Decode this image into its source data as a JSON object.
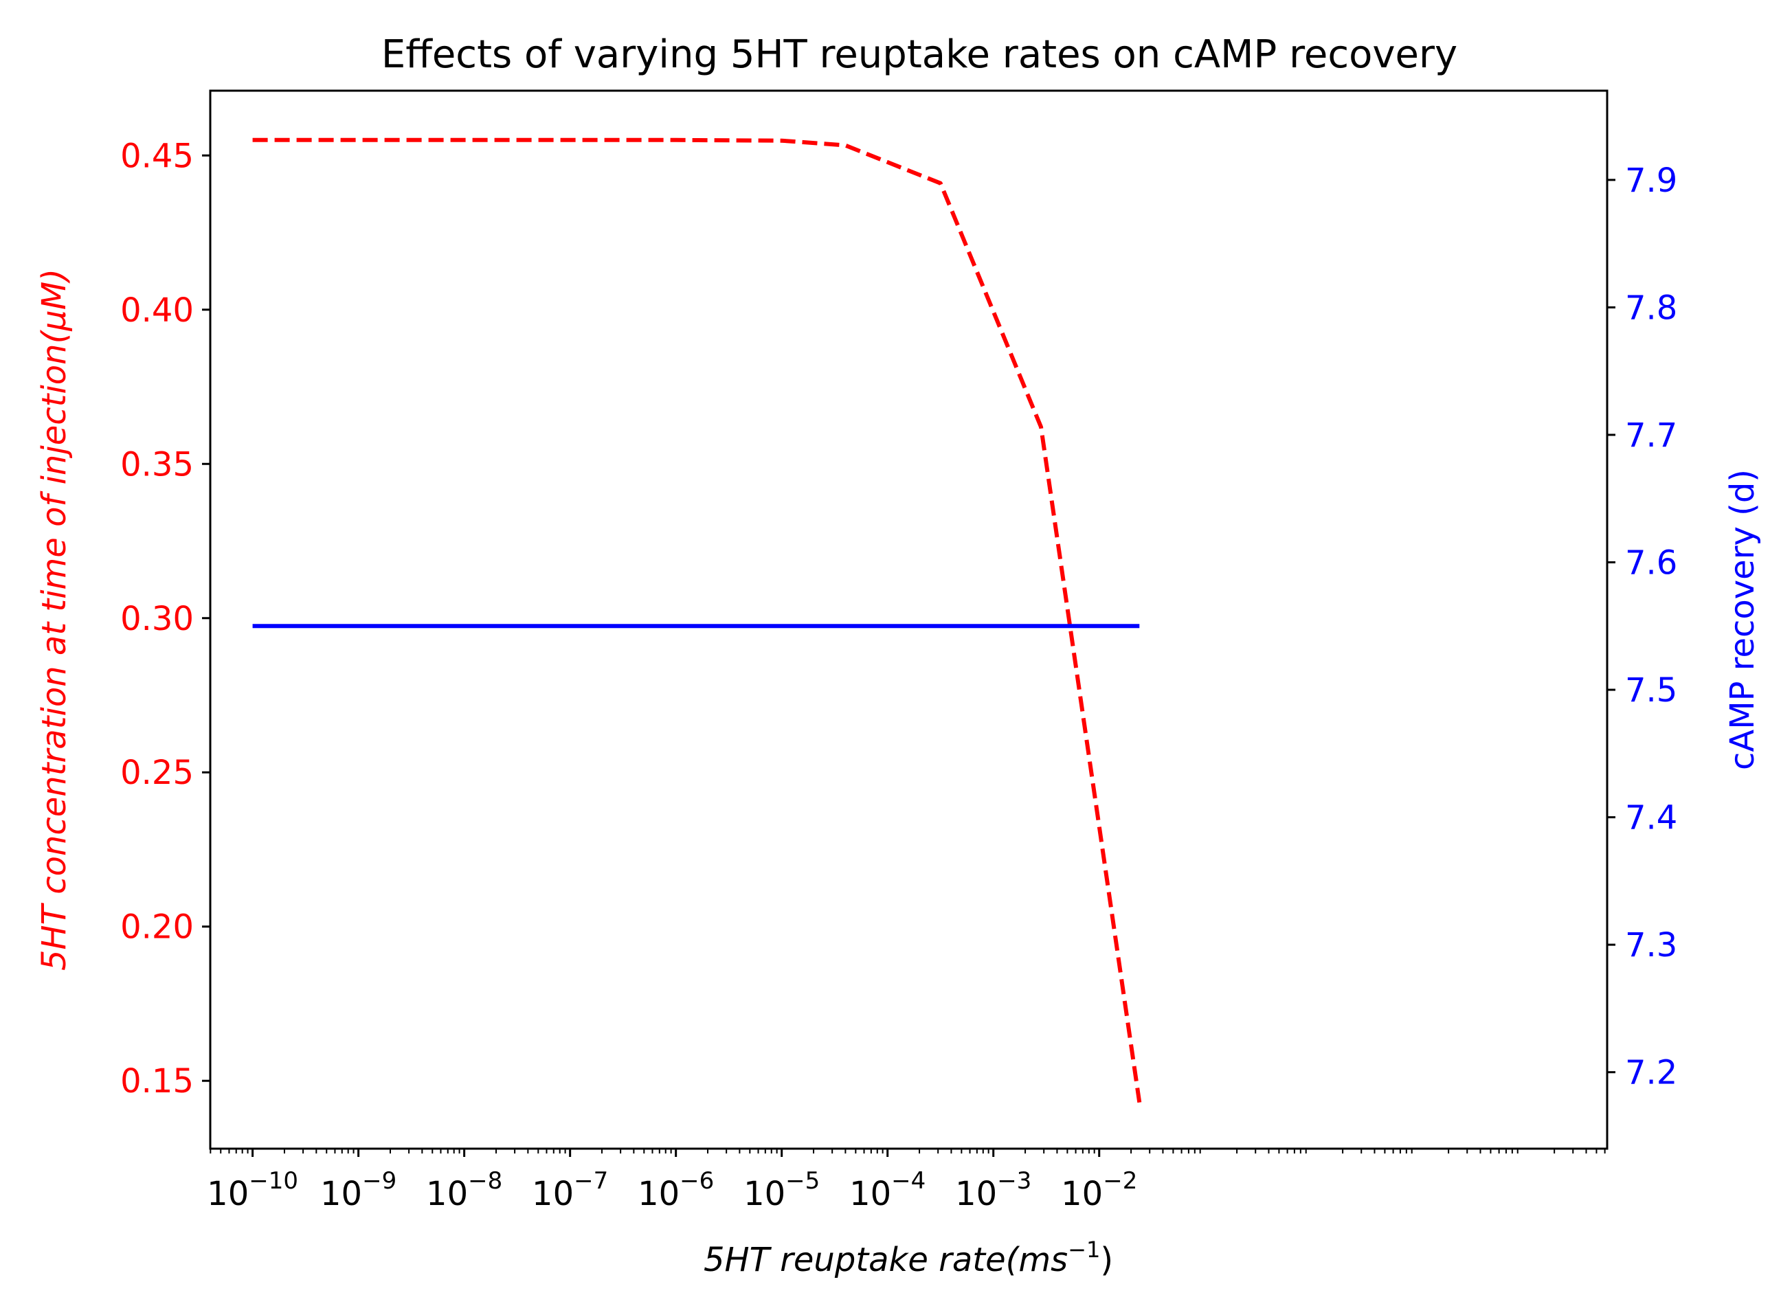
{
  "chart_data": {
    "type": "line",
    "title": "Effects of varying 5HT reuptake rates on cAMP recovery",
    "xlabel": {
      "main": "5HT reuptake rate",
      "unit_open": "(ms",
      "unit_exp": "−1",
      "unit_close": ")"
    },
    "ylabel_left": "5HT concentration at time of injection(μM)",
    "ylabel_right": "cAMP recovery (d)",
    "x_scale": "log",
    "xlim_log10": [
      -10.4,
      2.8
    ],
    "ylim_left": [
      0.128,
      0.471
    ],
    "ylim_right": [
      7.14,
      7.97
    ],
    "x_ticks": [
      {
        "base": "10",
        "exp": "−10",
        "log": -10
      },
      {
        "base": "10",
        "exp": "−9",
        "log": -9
      },
      {
        "base": "10",
        "exp": "−8",
        "log": -8
      },
      {
        "base": "10",
        "exp": "−7",
        "log": -7
      },
      {
        "base": "10",
        "exp": "−6",
        "log": -6
      },
      {
        "base": "10",
        "exp": "−5",
        "log": -5
      },
      {
        "base": "10",
        "exp": "−4",
        "log": -4
      },
      {
        "base": "10",
        "exp": "−3",
        "log": -3
      },
      {
        "base": "10",
        "exp": "−2",
        "log": -2
      }
    ],
    "y_ticks_left": [
      "0.15",
      "0.20",
      "0.25",
      "0.30",
      "0.35",
      "0.40",
      "0.45"
    ],
    "y_ticks_right": [
      "7.2",
      "7.3",
      "7.4",
      "7.5",
      "7.6",
      "7.7",
      "7.8",
      "7.9"
    ],
    "colors": {
      "left": "#ff0000",
      "right": "#0000ff",
      "axis": "#000000"
    },
    "series": [
      {
        "name": "5HT concentration at time of injection",
        "axis": "left",
        "style": "dashed",
        "color": "#ff0000",
        "x_log10": [
          -10,
          -9,
          -8,
          -7,
          -6,
          -5,
          -4.4,
          -3.5,
          -2.55,
          -1.62
        ],
        "y": [
          0.455,
          0.455,
          0.455,
          0.455,
          0.455,
          0.4548,
          0.4533,
          0.441,
          0.362,
          0.143
        ]
      },
      {
        "name": "cAMP recovery",
        "axis": "right",
        "style": "solid",
        "color": "#0000ff",
        "x_log10": [
          -10,
          -1.62
        ],
        "y": [
          7.55,
          7.55
        ]
      }
    ]
  }
}
